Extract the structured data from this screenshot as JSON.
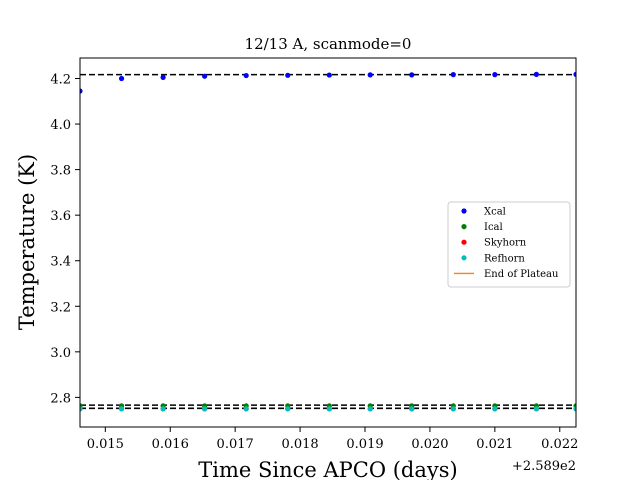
{
  "chart_data": {
    "type": "scatter",
    "title": "12/13 A, scanmode=0",
    "xlabel": "Time Since APCO (days)",
    "ylabel": "Temperature (K)",
    "x_offset_label": "+2.589e2",
    "xlim": [
      258.91461,
      258.92225
    ],
    "ylim": [
      2.67,
      4.29
    ],
    "x_ticks": [
      {
        "value": 258.915,
        "label": "0.015"
      },
      {
        "value": 258.916,
        "label": "0.016"
      },
      {
        "value": 258.917,
        "label": "0.017"
      },
      {
        "value": 258.918,
        "label": "0.018"
      },
      {
        "value": 258.919,
        "label": "0.019"
      },
      {
        "value": 258.92,
        "label": "0.020"
      },
      {
        "value": 258.921,
        "label": "0.021"
      },
      {
        "value": 258.922,
        "label": "0.022"
      }
    ],
    "y_ticks": [
      {
        "value": 2.8,
        "label": "2.8"
      },
      {
        "value": 3.0,
        "label": "3.0"
      },
      {
        "value": 3.2,
        "label": "3.2"
      },
      {
        "value": 3.4,
        "label": "3.4"
      },
      {
        "value": 3.6,
        "label": "3.6"
      },
      {
        "value": 3.8,
        "label": "3.8"
      },
      {
        "value": 4.0,
        "label": "4.0"
      },
      {
        "value": 4.2,
        "label": "4.2"
      }
    ],
    "x": [
      258.91461,
      258.91525,
      258.91589,
      258.91653,
      258.91717,
      258.91781,
      258.91845,
      258.91908,
      258.91972,
      258.92036,
      258.921,
      258.92164,
      258.92225
    ],
    "series": [
      {
        "name": "Xcal",
        "color": "#0000ff",
        "values": [
          4.145,
          4.2,
          4.205,
          4.21,
          4.213,
          4.214,
          4.215,
          4.216,
          4.216,
          4.217,
          4.217,
          4.218,
          4.218
        ]
      },
      {
        "name": "Ical",
        "color": "#008000",
        "values": [
          2.763,
          2.763,
          2.763,
          2.763,
          2.763,
          2.763,
          2.763,
          2.763,
          2.763,
          2.763,
          2.763,
          2.763,
          2.763
        ]
      },
      {
        "name": "Skyhorn",
        "color": "#ff0000",
        "values": [
          2.75,
          2.75,
          2.75,
          2.75,
          2.75,
          2.75,
          2.75,
          2.75,
          2.75,
          2.75,
          2.75,
          2.75,
          2.75
        ]
      },
      {
        "name": "Refhorn",
        "color": "#00bfbf",
        "values": [
          2.75,
          2.75,
          2.75,
          2.75,
          2.75,
          2.75,
          2.75,
          2.75,
          2.75,
          2.75,
          2.75,
          2.75,
          2.75
        ]
      }
    ],
    "reference_lines": [
      4.217,
      2.766,
      2.752
    ],
    "legend": {
      "placement": "center-right",
      "entries": [
        {
          "label": "Xcal",
          "marker": "dot",
          "color": "#0000ff"
        },
        {
          "label": "Ical",
          "marker": "dot",
          "color": "#008000"
        },
        {
          "label": "Skyhorn",
          "marker": "dot",
          "color": "#ff0000"
        },
        {
          "label": "Refhorn",
          "marker": "dot",
          "color": "#00bfbf"
        },
        {
          "label": "End of Plateau",
          "marker": "line",
          "color": "#ff7f0e"
        }
      ]
    },
    "grid": false
  }
}
